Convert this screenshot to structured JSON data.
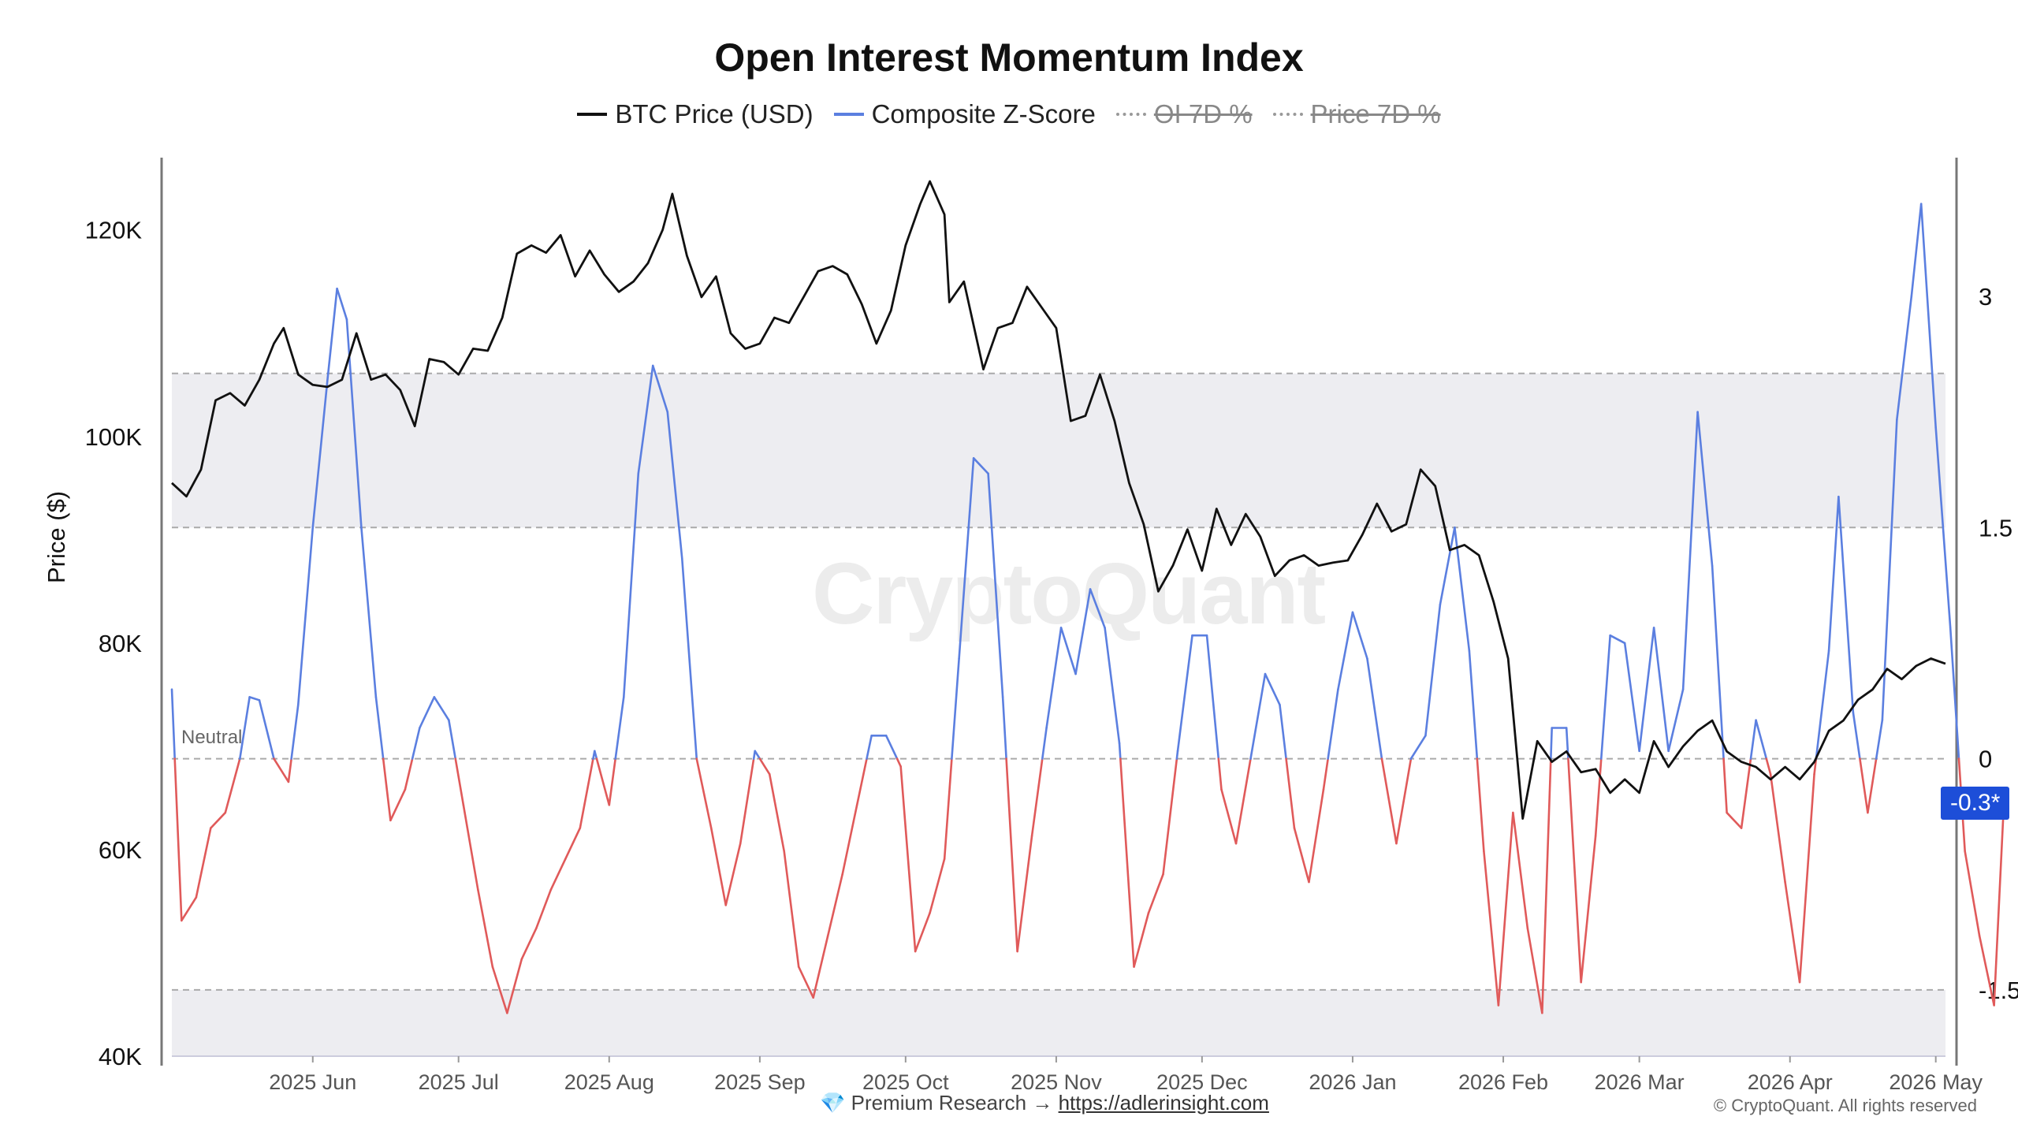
{
  "chart_data": {
    "type": "line",
    "title": "Open Interest Momentum Index",
    "ylabel": "Price ($)",
    "legend": [
      {
        "label": "BTC Price (USD)",
        "color": "#111111",
        "style": "solid",
        "visible": true
      },
      {
        "label": "Composite Z-Score",
        "color": "#5b7fe0",
        "style": "solid",
        "visible": true
      },
      {
        "label": "OI 7D %",
        "color": "#999999",
        "style": "dotted",
        "visible": false
      },
      {
        "label": "Price 7D %",
        "color": "#999999",
        "style": "dotted",
        "visible": false
      }
    ],
    "x_ticks": [
      "2025 Jun",
      "2025 Jul",
      "2025 Aug",
      "2025 Sep",
      "2025 Oct",
      "2025 Nov",
      "2025 Dec",
      "2026 Jan",
      "2026 Feb",
      "2026 Mar",
      "2026 Apr",
      "2026 May"
    ],
    "x_tick_dates": [
      "2025-06-01",
      "2025-07-01",
      "2025-08-01",
      "2025-09-01",
      "2025-10-01",
      "2025-11-01",
      "2025-12-01",
      "2026-01-01",
      "2026-02-01",
      "2026-03-01",
      "2026-04-01",
      "2026-05-01"
    ],
    "x_range": [
      "2025-05-03",
      "2026-05-03"
    ],
    "left_axis": {
      "ticks": [
        "40K",
        "60K",
        "80K",
        "100K",
        "120K"
      ],
      "tick_values": [
        40000,
        60000,
        80000,
        100000,
        120000
      ],
      "range": [
        40000,
        127000
      ]
    },
    "right_axis": {
      "ticks": [
        "-1.5",
        "0",
        "1.5",
        "3"
      ],
      "tick_values": [
        -1.5,
        0,
        1.5,
        3
      ],
      "range": [
        -1.93,
        3.9
      ]
    },
    "bands": [
      {
        "from": 1.5,
        "to": 2.5
      },
      {
        "from": -2.0,
        "to": -1.5
      }
    ],
    "reference_lines": [
      2.5,
      1.5,
      0,
      -1.5
    ],
    "neutral_label": "Neutral",
    "current_badge": "-0.3*",
    "positive_color": "#5b7fe0",
    "negative_color": "#e05a5a",
    "series": [
      {
        "name": "BTC Price (USD)",
        "axis": "left",
        "points": [
          [
            "2025-05-03",
            95500
          ],
          [
            "2025-05-06",
            94200
          ],
          [
            "2025-05-09",
            96800
          ],
          [
            "2025-05-12",
            103500
          ],
          [
            "2025-05-15",
            104200
          ],
          [
            "2025-05-18",
            103000
          ],
          [
            "2025-05-21",
            105500
          ],
          [
            "2025-05-24",
            109000
          ],
          [
            "2025-05-26",
            110500
          ],
          [
            "2025-05-29",
            106000
          ],
          [
            "2025-06-01",
            105000
          ],
          [
            "2025-06-04",
            104800
          ],
          [
            "2025-06-07",
            105500
          ],
          [
            "2025-06-10",
            110000
          ],
          [
            "2025-06-13",
            105500
          ],
          [
            "2025-06-16",
            106000
          ],
          [
            "2025-06-19",
            104500
          ],
          [
            "2025-06-22",
            101000
          ],
          [
            "2025-06-25",
            107500
          ],
          [
            "2025-06-28",
            107200
          ],
          [
            "2025-07-01",
            106000
          ],
          [
            "2025-07-04",
            108500
          ],
          [
            "2025-07-07",
            108300
          ],
          [
            "2025-07-10",
            111500
          ],
          [
            "2025-07-13",
            117700
          ],
          [
            "2025-07-16",
            118500
          ],
          [
            "2025-07-19",
            117800
          ],
          [
            "2025-07-22",
            119500
          ],
          [
            "2025-07-25",
            115500
          ],
          [
            "2025-07-28",
            118000
          ],
          [
            "2025-07-31",
            115700
          ],
          [
            "2025-08-03",
            114000
          ],
          [
            "2025-08-06",
            115000
          ],
          [
            "2025-08-09",
            116800
          ],
          [
            "2025-08-12",
            120000
          ],
          [
            "2025-08-14",
            123500
          ],
          [
            "2025-08-17",
            117500
          ],
          [
            "2025-08-20",
            113500
          ],
          [
            "2025-08-23",
            115500
          ],
          [
            "2025-08-26",
            110000
          ],
          [
            "2025-08-29",
            108500
          ],
          [
            "2025-09-01",
            109000
          ],
          [
            "2025-09-04",
            111500
          ],
          [
            "2025-09-07",
            111000
          ],
          [
            "2025-09-10",
            113500
          ],
          [
            "2025-09-13",
            116000
          ],
          [
            "2025-09-16",
            116500
          ],
          [
            "2025-09-19",
            115700
          ],
          [
            "2025-09-22",
            112800
          ],
          [
            "2025-09-25",
            109000
          ],
          [
            "2025-09-28",
            112200
          ],
          [
            "2025-10-01",
            118500
          ],
          [
            "2025-10-04",
            122500
          ],
          [
            "2025-10-06",
            124700
          ],
          [
            "2025-10-09",
            121500
          ],
          [
            "2025-10-10",
            113000
          ],
          [
            "2025-10-13",
            115000
          ],
          [
            "2025-10-17",
            106500
          ],
          [
            "2025-10-20",
            110500
          ],
          [
            "2025-10-23",
            111000
          ],
          [
            "2025-10-26",
            114500
          ],
          [
            "2025-10-29",
            112500
          ],
          [
            "2025-11-01",
            110500
          ],
          [
            "2025-11-04",
            101500
          ],
          [
            "2025-11-07",
            102000
          ],
          [
            "2025-11-10",
            106000
          ],
          [
            "2025-11-13",
            101500
          ],
          [
            "2025-11-16",
            95500
          ],
          [
            "2025-11-19",
            91500
          ],
          [
            "2025-11-22",
            85000
          ],
          [
            "2025-11-25",
            87500
          ],
          [
            "2025-11-28",
            91000
          ],
          [
            "2025-12-01",
            87000
          ],
          [
            "2025-12-04",
            93000
          ],
          [
            "2025-12-07",
            89500
          ],
          [
            "2025-12-10",
            92500
          ],
          [
            "2025-12-13",
            90300
          ],
          [
            "2025-12-16",
            86500
          ],
          [
            "2025-12-19",
            88000
          ],
          [
            "2025-12-22",
            88500
          ],
          [
            "2025-12-25",
            87500
          ],
          [
            "2025-12-28",
            87800
          ],
          [
            "2025-12-31",
            88000
          ],
          [
            "2026-01-03",
            90500
          ],
          [
            "2026-01-06",
            93500
          ],
          [
            "2026-01-09",
            90800
          ],
          [
            "2026-01-12",
            91500
          ],
          [
            "2026-01-15",
            96800
          ],
          [
            "2026-01-18",
            95200
          ],
          [
            "2026-01-21",
            89000
          ],
          [
            "2026-01-24",
            89500
          ],
          [
            "2026-01-27",
            88500
          ],
          [
            "2026-01-30",
            84000
          ],
          [
            "2026-02-02",
            78500
          ],
          [
            "2026-02-05",
            63000
          ],
          [
            "2026-02-08",
            70500
          ],
          [
            "2026-02-11",
            68500
          ],
          [
            "2026-02-14",
            69500
          ],
          [
            "2026-02-17",
            67500
          ],
          [
            "2026-02-20",
            67800
          ],
          [
            "2026-02-23",
            65500
          ],
          [
            "2026-02-26",
            66800
          ],
          [
            "2026-03-01",
            65500
          ],
          [
            "2026-03-04",
            70500
          ],
          [
            "2026-03-07",
            68000
          ],
          [
            "2026-03-10",
            70000
          ],
          [
            "2026-03-13",
            71500
          ],
          [
            "2026-03-16",
            72500
          ],
          [
            "2026-03-19",
            69500
          ],
          [
            "2026-03-22",
            68500
          ],
          [
            "2026-03-25",
            68000
          ],
          [
            "2026-03-28",
            66800
          ],
          [
            "2026-03-31",
            68000
          ],
          [
            "2026-04-03",
            66800
          ],
          [
            "2026-04-06",
            68500
          ],
          [
            "2026-04-09",
            71500
          ],
          [
            "2026-04-12",
            72500
          ],
          [
            "2026-04-15",
            74500
          ],
          [
            "2026-04-18",
            75500
          ],
          [
            "2026-04-21",
            77500
          ],
          [
            "2026-04-24",
            76500
          ],
          [
            "2026-04-27",
            77800
          ],
          [
            "2026-04-30",
            78500
          ],
          [
            "2026-05-03",
            78000
          ]
        ]
      },
      {
        "name": "Composite Z-Score",
        "axis": "right",
        "points": [
          [
            "2025-05-03",
            0.45
          ],
          [
            "2025-05-05",
            -1.05
          ],
          [
            "2025-05-08",
            -0.9
          ],
          [
            "2025-05-11",
            -0.45
          ],
          [
            "2025-05-14",
            -0.35
          ],
          [
            "2025-05-17",
            0.0
          ],
          [
            "2025-05-19",
            0.4
          ],
          [
            "2025-05-21",
            0.38
          ],
          [
            "2025-05-24",
            0.0
          ],
          [
            "2025-05-27",
            -0.15
          ],
          [
            "2025-05-29",
            0.35
          ],
          [
            "2025-06-01",
            1.5
          ],
          [
            "2025-06-04",
            2.45
          ],
          [
            "2025-06-06",
            3.05
          ],
          [
            "2025-06-08",
            2.85
          ],
          [
            "2025-06-11",
            1.5
          ],
          [
            "2025-06-14",
            0.4
          ],
          [
            "2025-06-17",
            -0.4
          ],
          [
            "2025-06-20",
            -0.2
          ],
          [
            "2025-06-23",
            0.2
          ],
          [
            "2025-06-26",
            0.4
          ],
          [
            "2025-06-29",
            0.25
          ],
          [
            "2025-07-02",
            -0.3
          ],
          [
            "2025-07-05",
            -0.85
          ],
          [
            "2025-07-08",
            -1.35
          ],
          [
            "2025-07-11",
            -1.65
          ],
          [
            "2025-07-14",
            -1.3
          ],
          [
            "2025-07-17",
            -1.1
          ],
          [
            "2025-07-20",
            -0.85
          ],
          [
            "2025-07-23",
            -0.65
          ],
          [
            "2025-07-26",
            -0.45
          ],
          [
            "2025-07-29",
            0.05
          ],
          [
            "2025-08-01",
            -0.3
          ],
          [
            "2025-08-04",
            0.4
          ],
          [
            "2025-08-07",
            1.85
          ],
          [
            "2025-08-10",
            2.55
          ],
          [
            "2025-08-13",
            2.25
          ],
          [
            "2025-08-16",
            1.3
          ],
          [
            "2025-08-19",
            0.0
          ],
          [
            "2025-08-22",
            -0.45
          ],
          [
            "2025-08-25",
            -0.95
          ],
          [
            "2025-08-28",
            -0.55
          ],
          [
            "2025-08-31",
            0.05
          ],
          [
            "2025-09-03",
            -0.1
          ],
          [
            "2025-09-06",
            -0.6
          ],
          [
            "2025-09-09",
            -1.35
          ],
          [
            "2025-09-12",
            -1.55
          ],
          [
            "2025-09-15",
            -1.15
          ],
          [
            "2025-09-18",
            -0.75
          ],
          [
            "2025-09-21",
            -0.3
          ],
          [
            "2025-09-24",
            0.15
          ],
          [
            "2025-09-27",
            0.15
          ],
          [
            "2025-09-30",
            -0.05
          ],
          [
            "2025-10-03",
            -1.25
          ],
          [
            "2025-10-06",
            -1.0
          ],
          [
            "2025-10-09",
            -0.65
          ],
          [
            "2025-10-12",
            0.65
          ],
          [
            "2025-10-15",
            1.95
          ],
          [
            "2025-10-18",
            1.85
          ],
          [
            "2025-10-21",
            0.4
          ],
          [
            "2025-10-24",
            -1.25
          ],
          [
            "2025-10-27",
            -0.5
          ],
          [
            "2025-10-30",
            0.2
          ],
          [
            "2025-11-02",
            0.85
          ],
          [
            "2025-11-05",
            0.55
          ],
          [
            "2025-11-08",
            1.1
          ],
          [
            "2025-11-11",
            0.85
          ],
          [
            "2025-11-14",
            0.1
          ],
          [
            "2025-11-17",
            -1.35
          ],
          [
            "2025-11-20",
            -1.0
          ],
          [
            "2025-11-23",
            -0.75
          ],
          [
            "2025-11-26",
            0.05
          ],
          [
            "2025-11-29",
            0.8
          ],
          [
            "2025-12-02",
            0.8
          ],
          [
            "2025-12-05",
            -0.2
          ],
          [
            "2025-12-08",
            -0.55
          ],
          [
            "2025-12-11",
            0.0
          ],
          [
            "2025-12-14",
            0.55
          ],
          [
            "2025-12-17",
            0.35
          ],
          [
            "2025-12-20",
            -0.45
          ],
          [
            "2025-12-23",
            -0.8
          ],
          [
            "2025-12-26",
            -0.2
          ],
          [
            "2025-12-29",
            0.45
          ],
          [
            "2026-01-01",
            0.95
          ],
          [
            "2026-01-04",
            0.65
          ],
          [
            "2026-01-07",
            0.0
          ],
          [
            "2026-01-10",
            -0.55
          ],
          [
            "2026-01-13",
            0.0
          ],
          [
            "2026-01-16",
            0.15
          ],
          [
            "2026-01-19",
            1.0
          ],
          [
            "2026-01-22",
            1.5
          ],
          [
            "2026-01-25",
            0.7
          ],
          [
            "2026-01-28",
            -0.6
          ],
          [
            "2026-01-31",
            -1.6
          ],
          [
            "2026-02-03",
            -0.35
          ],
          [
            "2026-02-06",
            -1.1
          ],
          [
            "2026-02-09",
            -1.65
          ],
          [
            "2026-02-11",
            0.2
          ],
          [
            "2026-02-14",
            0.2
          ],
          [
            "2026-02-17",
            -1.45
          ],
          [
            "2026-02-20",
            -0.5
          ],
          [
            "2026-02-23",
            0.8
          ],
          [
            "2026-02-26",
            0.75
          ],
          [
            "2026-03-01",
            0.05
          ],
          [
            "2026-03-04",
            0.85
          ],
          [
            "2026-03-07",
            0.05
          ],
          [
            "2026-03-10",
            0.45
          ],
          [
            "2026-03-13",
            2.25
          ],
          [
            "2026-03-16",
            1.25
          ],
          [
            "2026-03-19",
            -0.35
          ],
          [
            "2026-03-22",
            -0.45
          ],
          [
            "2026-03-25",
            0.25
          ],
          [
            "2026-03-28",
            -0.1
          ],
          [
            "2026-03-31",
            -0.8
          ],
          [
            "2026-04-03",
            -1.45
          ],
          [
            "2026-04-06",
            -0.1
          ],
          [
            "2026-04-09",
            0.7
          ],
          [
            "2026-04-11",
            1.7
          ],
          [
            "2026-04-14",
            0.3
          ],
          [
            "2026-04-17",
            -0.35
          ],
          [
            "2026-04-20",
            0.25
          ],
          [
            "2026-04-23",
            2.2
          ],
          [
            "2026-04-26",
            3.0
          ],
          [
            "2026-04-28",
            3.6
          ],
          [
            "2026-05-01",
            2.15
          ],
          [
            "2026-05-04",
            0.85
          ],
          [
            "2026-05-07",
            -0.6
          ],
          [
            "2026-05-10",
            -1.15
          ],
          [
            "2026-05-13",
            -1.6
          ],
          [
            "2026-05-15",
            -0.3
          ]
        ]
      }
    ]
  },
  "footer": {
    "prefix": "💎 Premium Research →",
    "link": "https://adlerinsight.com",
    "copyright": "© CryptoQuant. All rights reserved"
  },
  "watermark": "CryptoQuant"
}
